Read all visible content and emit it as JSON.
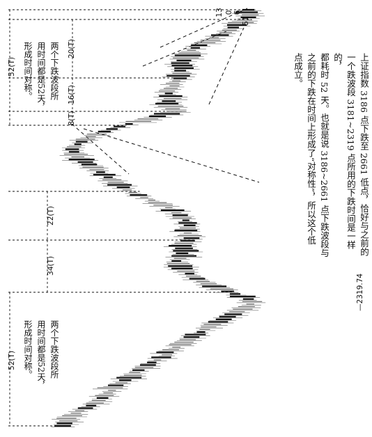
{
  "chart_data": {
    "type": "candlestick",
    "rotated": "90deg clockwise",
    "low_label": "2319.74",
    "peak_labels": [
      "13",
      "0",
      "6",
      "51"
    ],
    "time_labels": [
      "52(T)",
      "34(T)",
      "22(T)",
      "8(T)",
      "16(T)",
      "20(T)",
      "52(T)"
    ],
    "annotations": {
      "upper_note": "两个下跌波段所\n用时间都是52天，\n形成时间对称。",
      "lower_note": "两个下跌波段所\n用时间都是52天，\n形成时间对称。",
      "main_text": "上证指数 3186 点下跌至 2661 低点，恰好与之前的\n一个跌波段 3181~2319 点所用的下跌时间是一样的，\n都耗时 52 天。也就是说 3186~2661 点下跌波段与\n之前的下跌在时间上形成了“对称性”，所以这个低\n点成立。"
    },
    "series": [
      {
        "values": [
          0,
          1,
          3,
          2,
          5,
          7,
          9,
          12,
          15,
          17,
          19,
          21,
          22,
          24,
          26,
          25,
          28,
          31,
          33,
          35,
          37,
          38,
          40,
          43,
          45,
          47,
          50,
          52,
          55,
          54,
          57,
          60,
          62,
          64,
          66,
          68,
          70,
          73,
          75,
          77,
          79,
          82,
          85,
          87,
          90,
          92,
          95,
          97,
          99,
          100,
          98,
          95,
          91,
          87,
          84,
          80,
          77,
          74,
          71,
          69,
          67,
          65,
          63,
          62,
          61,
          60,
          62,
          64,
          63,
          65,
          64,
          62,
          64,
          66,
          68,
          67,
          66,
          65,
          66,
          67,
          66,
          65,
          63,
          62,
          60,
          58,
          56,
          53,
          50,
          47,
          43,
          40,
          37,
          34,
          32,
          30,
          28,
          26,
          24,
          22,
          20,
          18,
          16,
          14,
          12,
          10,
          8,
          7,
          6,
          5,
          6,
          8,
          10,
          12,
          15,
          18,
          22,
          26,
          30,
          35,
          40,
          45,
          50,
          55,
          60,
          58,
          57,
          55,
          56,
          58,
          57,
          56,
          55,
          57,
          59,
          58,
          60,
          62,
          61,
          63,
          62,
          64,
          63,
          62,
          64,
          65,
          66,
          67,
          68,
          70,
          72,
          75,
          78,
          80,
          83,
          86,
          88,
          90,
          92,
          94,
          96,
          98,
          99,
          97,
          98
        ]
      }
    ]
  }
}
